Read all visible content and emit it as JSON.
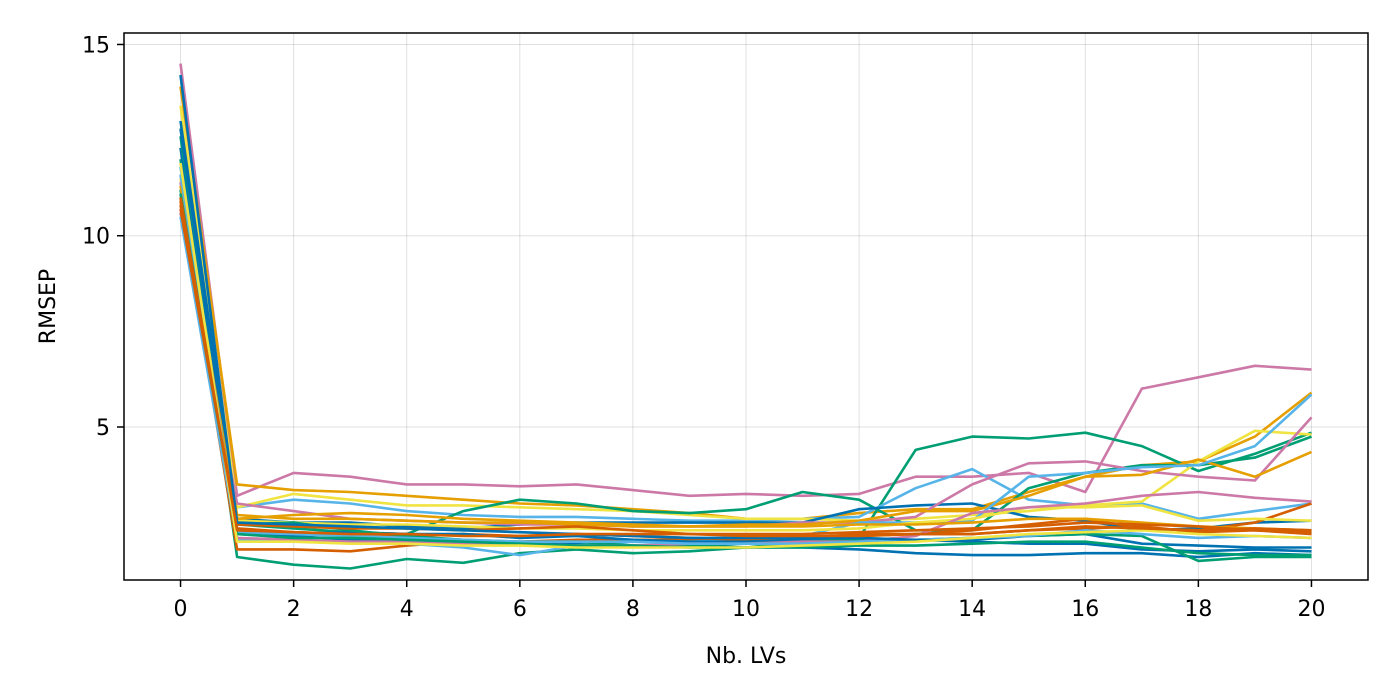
{
  "chart_data": {
    "type": "line",
    "title": "",
    "xlabel": "Nb. LVs",
    "ylabel": "RMSEP",
    "xlim": [
      -1,
      21
    ],
    "ylim": [
      1,
      15.3
    ],
    "xticks": [
      0,
      2,
      4,
      6,
      8,
      10,
      12,
      14,
      16,
      18,
      20
    ],
    "yticks": [
      5,
      10,
      15
    ],
    "grid": true,
    "legend": "none",
    "x": [
      0,
      1,
      2,
      3,
      4,
      5,
      6,
      7,
      8,
      9,
      10,
      11,
      12,
      13,
      14,
      15,
      16,
      17,
      18,
      19,
      20
    ],
    "series": [
      {
        "color": "#CC79A7",
        "values": [
          14.5,
          3.2,
          3.8,
          3.7,
          3.5,
          3.5,
          3.45,
          3.5,
          3.35,
          3.2,
          3.25,
          3.2,
          3.25,
          3.7,
          3.7,
          3.8,
          3.3,
          6.0,
          6.3,
          6.6,
          6.5
        ]
      },
      {
        "color": "#E69F00",
        "values": [
          13.9,
          3.5,
          3.35,
          3.3,
          3.2,
          3.1,
          3.0,
          2.95,
          2.85,
          2.75,
          2.6,
          2.6,
          2.75,
          2.85,
          2.85,
          3.3,
          3.7,
          4.0,
          4.1,
          4.75,
          5.9
        ]
      },
      {
        "color": "#009E73",
        "values": [
          12.0,
          1.6,
          1.4,
          1.3,
          1.55,
          1.45,
          1.7,
          1.8,
          1.7,
          1.75,
          1.85,
          2.0,
          2.1,
          4.4,
          4.75,
          4.7,
          4.85,
          4.5,
          3.85,
          4.3,
          4.85
        ]
      },
      {
        "color": "#56B4E9",
        "values": [
          11.8,
          2.9,
          3.1,
          3.0,
          2.8,
          2.7,
          2.65,
          2.65,
          2.6,
          2.55,
          2.55,
          2.6,
          2.65,
          3.4,
          3.9,
          3.1,
          2.95,
          3.0,
          2.6,
          2.8,
          3.0
        ]
      },
      {
        "color": "#0072B2",
        "values": [
          12.3,
          2.2,
          2.15,
          2.05,
          2.05,
          1.95,
          1.95,
          1.95,
          1.9,
          1.9,
          1.85,
          1.85,
          1.8,
          1.7,
          1.65,
          1.65,
          1.7,
          1.7,
          1.6,
          1.7,
          1.65
        ]
      },
      {
        "color": "#D55E00",
        "values": [
          10.9,
          1.8,
          1.8,
          1.75,
          1.9,
          2.0,
          2.0,
          2.05,
          2.05,
          2.05,
          2.05,
          2.1,
          2.15,
          2.2,
          2.2,
          2.3,
          2.35,
          2.4,
          2.25,
          2.3,
          2.2
        ]
      },
      {
        "color": "#F0E442",
        "values": [
          13.4,
          2.9,
          3.25,
          3.1,
          2.95,
          2.95,
          2.9,
          2.85,
          2.8,
          2.7,
          2.6,
          2.6,
          2.55,
          2.6,
          2.7,
          2.8,
          2.95,
          3.05,
          4.1,
          4.9,
          4.8
        ]
      },
      {
        "color": "#009E73",
        "values": [
          12.6,
          2.45,
          2.35,
          2.25,
          2.2,
          2.8,
          3.1,
          3.0,
          2.8,
          2.75,
          2.85,
          3.3,
          3.1,
          2.3,
          2.3,
          3.4,
          3.8,
          4.0,
          4.0,
          4.2,
          4.75
        ]
      },
      {
        "color": "#0072B2",
        "values": [
          13.0,
          2.6,
          2.5,
          2.5,
          2.4,
          2.35,
          2.45,
          2.5,
          2.5,
          2.5,
          2.5,
          2.5,
          2.85,
          2.95,
          3.0,
          2.65,
          2.55,
          2.3,
          2.35,
          2.5,
          2.55
        ]
      },
      {
        "color": "#CC79A7",
        "values": [
          10.6,
          3.0,
          2.8,
          2.6,
          2.55,
          2.5,
          2.45,
          2.45,
          2.4,
          2.4,
          2.4,
          2.5,
          2.5,
          2.65,
          3.5,
          4.05,
          4.1,
          3.85,
          3.7,
          3.6,
          5.25
        ]
      },
      {
        "color": "#E69F00",
        "values": [
          11.0,
          2.7,
          2.6,
          2.6,
          2.55,
          2.5,
          2.5,
          2.45,
          2.4,
          2.4,
          2.45,
          2.45,
          2.55,
          2.8,
          2.8,
          3.2,
          3.7,
          3.75,
          4.15,
          3.7,
          4.35
        ]
      },
      {
        "color": "#56B4E9",
        "values": [
          10.5,
          2.05,
          2.0,
          2.0,
          1.95,
          1.85,
          1.65,
          1.9,
          2.0,
          2.0,
          2.05,
          2.15,
          2.5,
          2.5,
          2.55,
          3.7,
          3.8,
          3.95,
          4.0,
          4.5,
          5.85
        ]
      },
      {
        "color": "#D55E00",
        "values": [
          10.7,
          2.35,
          2.25,
          2.2,
          2.15,
          2.2,
          2.15,
          2.2,
          2.15,
          2.1,
          2.05,
          2.1,
          2.2,
          2.2,
          2.3,
          2.45,
          2.6,
          2.35,
          2.3,
          2.5,
          3.0
        ]
      },
      {
        "color": "#F0E442",
        "values": [
          11.5,
          2.55,
          2.5,
          2.45,
          2.45,
          2.4,
          2.35,
          2.35,
          2.3,
          2.3,
          2.3,
          2.3,
          2.35,
          2.5,
          2.6,
          2.9,
          2.9,
          2.95,
          2.55,
          2.6,
          2.55
        ]
      },
      {
        "color": "#0072B2",
        "values": [
          12.8,
          2.3,
          2.2,
          2.25,
          2.2,
          2.2,
          2.1,
          2.15,
          2.05,
          2.0,
          2.0,
          2.05,
          2.0,
          2.05,
          2.05,
          2.15,
          2.2,
          1.95,
          1.9,
          1.85,
          1.85
        ]
      },
      {
        "color": "#009E73",
        "values": [
          11.2,
          2.45,
          2.5,
          2.3,
          2.15,
          2.05,
          2.0,
          2.0,
          1.9,
          1.9,
          1.95,
          2.0,
          2.05,
          2.05,
          2.1,
          2.15,
          2.2,
          2.15,
          1.5,
          1.6,
          1.6
        ]
      },
      {
        "color": "#CC79A7",
        "values": [
          11.4,
          2.1,
          2.05,
          2.0,
          2.0,
          1.95,
          1.95,
          1.9,
          1.9,
          1.95,
          1.95,
          2.0,
          2.0,
          2.15,
          2.75,
          2.9,
          3.0,
          3.2,
          3.3,
          3.15,
          3.05
        ]
      },
      {
        "color": "#E69F00",
        "values": [
          11.3,
          2.6,
          2.7,
          2.75,
          2.7,
          2.6,
          2.55,
          2.5,
          2.45,
          2.4,
          2.4,
          2.4,
          2.45,
          2.45,
          2.5,
          2.6,
          2.6,
          2.5,
          2.4,
          2.35,
          2.3
        ]
      },
      {
        "color": "#56B4E9",
        "values": [
          11.6,
          2.25,
          2.2,
          2.15,
          2.1,
          2.05,
          2.0,
          2.0,
          2.0,
          1.95,
          1.95,
          1.95,
          2.0,
          2.05,
          2.1,
          2.15,
          2.3,
          2.2,
          2.1,
          2.15,
          2.1
        ]
      },
      {
        "color": "#D55E00",
        "values": [
          10.8,
          2.45,
          2.4,
          2.35,
          2.35,
          2.3,
          2.35,
          2.4,
          2.3,
          2.2,
          2.2,
          2.2,
          2.25,
          2.3,
          2.35,
          2.4,
          2.5,
          2.45,
          2.4,
          2.3,
          2.25
        ]
      },
      {
        "color": "#0072B2",
        "values": [
          14.2,
          2.5,
          2.45,
          2.4,
          2.35,
          2.3,
          2.25,
          2.2,
          2.15,
          2.1,
          2.1,
          2.1,
          2.1,
          2.05,
          2.0,
          1.95,
          1.95,
          1.8,
          1.75,
          1.8,
          1.75
        ]
      },
      {
        "color": "#009E73",
        "values": [
          11.1,
          2.2,
          2.1,
          2.1,
          2.05,
          2.0,
          1.95,
          1.9,
          1.9,
          1.85,
          1.85,
          1.85,
          1.9,
          1.9,
          1.95,
          2.0,
          2.0,
          1.85,
          1.7,
          1.65,
          1.65
        ]
      },
      {
        "color": "#F0E442",
        "values": [
          11.9,
          2.0,
          2.0,
          1.95,
          1.95,
          1.9,
          1.9,
          1.85,
          1.85,
          1.85,
          1.85,
          1.9,
          1.95,
          2.0,
          2.1,
          2.2,
          2.25,
          2.3,
          2.2,
          2.15,
          2.1
        ]
      },
      {
        "color": "#D55E00",
        "values": [
          11.0,
          2.3,
          2.25,
          2.2,
          2.2,
          2.15,
          2.15,
          2.2,
          2.2,
          2.2,
          2.15,
          2.15,
          2.15,
          2.2,
          2.2,
          2.3,
          2.4,
          2.35,
          2.3,
          2.35,
          2.3
        ]
      }
    ]
  }
}
